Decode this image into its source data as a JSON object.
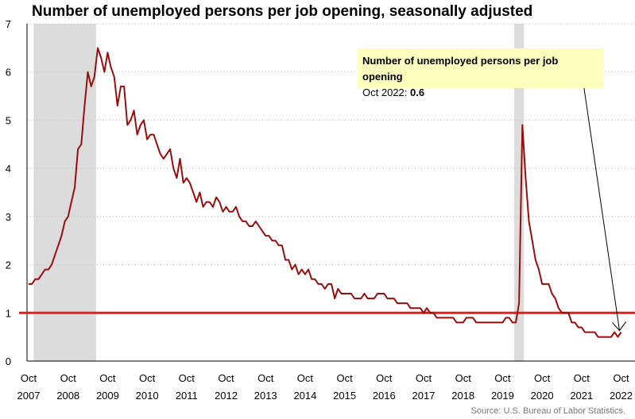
{
  "title": "Number of unemployed persons per job opening, seasonally adjusted",
  "callout": {
    "heading": "Number of unemployed persons per job opening",
    "period": "Oct 2022:",
    "value": "0.6"
  },
  "source": "Source: U.S. Bureau of Labor Statistics.",
  "colors": {
    "line": "#9b0d0d",
    "reference": "#e41f1f",
    "recession": "#dcdcdc",
    "callout_bg": "#fdfdbe"
  },
  "chart_data": {
    "type": "line",
    "title": "Number of unemployed persons per job opening, seasonally adjusted",
    "xlabel": "",
    "ylabel": "",
    "ylim": [
      0,
      7
    ],
    "yticks": [
      0,
      1,
      2,
      3,
      4,
      5,
      6,
      7
    ],
    "xtick_labels": [
      [
        "Oct",
        "2007"
      ],
      [
        "Oct",
        "2008"
      ],
      [
        "Oct",
        "2009"
      ],
      [
        "Oct",
        "2010"
      ],
      [
        "Oct",
        "2011"
      ],
      [
        "Oct",
        "2012"
      ],
      [
        "Oct",
        "2013"
      ],
      [
        "Oct",
        "2014"
      ],
      [
        "Oct",
        "2015"
      ],
      [
        "Oct",
        "2016"
      ],
      [
        "Oct",
        "2017"
      ],
      [
        "Oct",
        "2018"
      ],
      [
        "Oct",
        "2019"
      ],
      [
        "Oct",
        "2020"
      ],
      [
        "Oct",
        "2021"
      ],
      [
        "Oct",
        "2022"
      ]
    ],
    "grid": "horizontal dotted",
    "reference_line": 1,
    "recession_shading": [
      [
        "Dec 2007",
        "Jun 2009"
      ],
      [
        "Feb 2020",
        "Apr 2020"
      ]
    ],
    "start": "Oct 2007",
    "end": "Oct 2022",
    "series": [
      {
        "values": [
          1.6,
          1.6,
          1.7,
          1.7,
          1.8,
          1.9,
          1.9,
          2.0,
          2.2,
          2.4,
          2.6,
          2.9,
          3.0,
          3.3,
          3.6,
          4.4,
          4.5,
          5.3,
          6.0,
          5.7,
          5.9,
          6.5,
          6.3,
          6.0,
          6.4,
          6.1,
          5.9,
          5.3,
          5.7,
          5.7,
          4.9,
          5.0,
          5.2,
          4.7,
          4.9,
          5.0,
          4.6,
          4.7,
          4.7,
          4.5,
          4.3,
          4.2,
          4.3,
          4.4,
          4.0,
          3.8,
          4.2,
          3.7,
          3.8,
          3.7,
          3.5,
          3.3,
          3.5,
          3.2,
          3.3,
          3.3,
          3.2,
          3.4,
          3.3,
          3.1,
          3.2,
          3.1,
          3.1,
          3.2,
          3.0,
          2.9,
          2.9,
          2.8,
          2.8,
          2.9,
          2.8,
          2.7,
          2.6,
          2.6,
          2.5,
          2.5,
          2.4,
          2.4,
          2.1,
          2.1,
          1.9,
          2.0,
          1.8,
          1.9,
          1.8,
          1.9,
          1.7,
          1.7,
          1.6,
          1.6,
          1.5,
          1.6,
          1.6,
          1.3,
          1.5,
          1.4,
          1.4,
          1.4,
          1.4,
          1.3,
          1.3,
          1.3,
          1.4,
          1.3,
          1.3,
          1.3,
          1.4,
          1.4,
          1.4,
          1.3,
          1.3,
          1.3,
          1.2,
          1.2,
          1.2,
          1.2,
          1.1,
          1.1,
          1.1,
          1.1,
          1.0,
          1.1,
          1.0,
          1.0,
          0.9,
          0.9,
          0.9,
          0.9,
          0.9,
          0.9,
          0.8,
          0.8,
          0.8,
          0.9,
          0.9,
          0.9,
          0.8,
          0.8,
          0.8,
          0.8,
          0.8,
          0.8,
          0.8,
          0.8,
          0.8,
          0.9,
          0.9,
          0.8,
          0.8,
          1.2,
          4.9,
          3.8,
          2.9,
          2.5,
          2.1,
          1.9,
          1.6,
          1.6,
          1.6,
          1.4,
          1.3,
          1.1,
          1.0,
          1.0,
          1.0,
          0.8,
          0.8,
          0.7,
          0.7,
          0.6,
          0.6,
          0.6,
          0.6,
          0.5,
          0.5,
          0.5,
          0.5,
          0.5,
          0.6,
          0.5,
          0.6
        ]
      }
    ]
  }
}
